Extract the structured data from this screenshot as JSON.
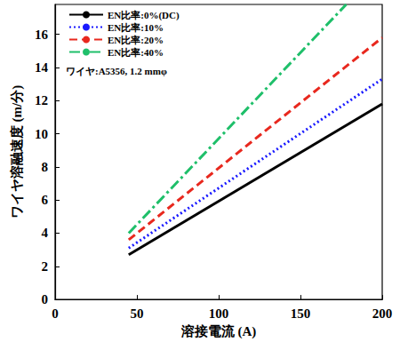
{
  "chart_data": {
    "type": "line",
    "x_label": "溶接電流 (A)",
    "y_label": "ワイヤ溶融速度 (m/分)",
    "annotation": "ワイヤ:A5356, 1.2 mmφ",
    "xlim": [
      0,
      200
    ],
    "xticks": [
      0,
      50,
      100,
      150,
      200
    ],
    "ylim": [
      0,
      17.8
    ],
    "yticks": [
      0,
      2,
      4,
      6,
      8,
      10,
      12,
      14,
      16
    ],
    "grid": false,
    "legend": "upper left",
    "series": [
      {
        "name": "EN比率:0%(DC)",
        "color": "#000000",
        "line_style": "solid",
        "x": [
          45,
          200
        ],
        "values": [
          2.7,
          11.8
        ]
      },
      {
        "name": "EN比率:10%",
        "color": "#1a1aff",
        "line_style": "dotted",
        "x": [
          45,
          200
        ],
        "values": [
          3.1,
          13.3
        ]
      },
      {
        "name": "EN比率:20%",
        "color": "#e8281e",
        "line_style": "dashed",
        "x": [
          45,
          200
        ],
        "values": [
          3.6,
          15.8
        ]
      },
      {
        "name": "EN比率:40%",
        "color": "#1fbf6a",
        "line_style": "dashdot",
        "x": [
          45,
          178
        ],
        "values": [
          4.0,
          17.8
        ]
      }
    ]
  }
}
